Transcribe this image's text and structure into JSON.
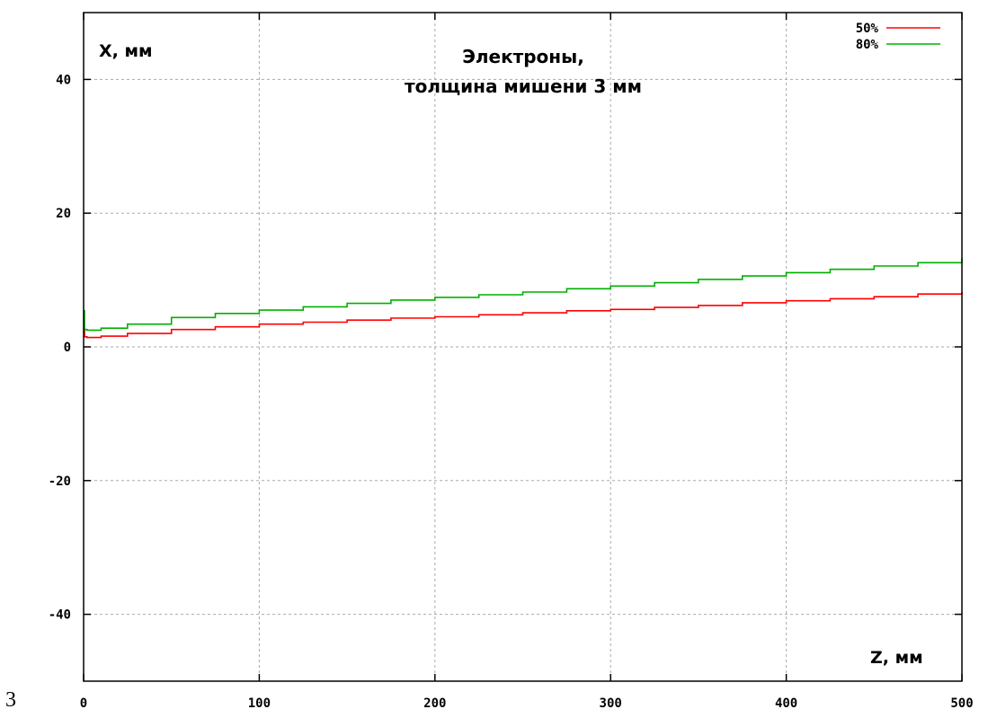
{
  "page_number": "3",
  "chart_data": {
    "type": "line",
    "title_lines": [
      "Электроны,",
      "толщина мишени 3 мм"
    ],
    "xlabel": "Z, мм",
    "ylabel": "X, мм",
    "xlim": [
      0,
      500
    ],
    "ylim": [
      -50,
      50
    ],
    "x_ticks": [
      0,
      100,
      200,
      300,
      400,
      500
    ],
    "y_ticks": [
      -40,
      -20,
      0,
      20,
      40
    ],
    "x_tick_labels": [
      "0",
      "100",
      "200",
      "300",
      "400",
      "500"
    ],
    "y_tick_labels": [
      "-40",
      "-20",
      "0",
      "20",
      "40"
    ],
    "grid": true,
    "legend_position": "top-right",
    "series": [
      {
        "name": "50%",
        "color": "#ff0000",
        "x": [
          0,
          0.5,
          2,
          10,
          25,
          50,
          75,
          100,
          125,
          150,
          175,
          200,
          225,
          250,
          275,
          300,
          325,
          350,
          375,
          400,
          425,
          450,
          475,
          500
        ],
        "y": [
          2.8,
          1.5,
          1.4,
          1.6,
          2.0,
          2.6,
          3.0,
          3.4,
          3.7,
          4.0,
          4.3,
          4.5,
          4.8,
          5.1,
          5.4,
          5.6,
          5.9,
          6.2,
          6.6,
          6.9,
          7.2,
          7.5,
          7.9,
          8.2
        ]
      },
      {
        "name": "80%",
        "color": "#00b000",
        "x": [
          0,
          0.5,
          2,
          10,
          25,
          50,
          75,
          100,
          125,
          150,
          175,
          200,
          225,
          250,
          275,
          300,
          325,
          350,
          375,
          400,
          425,
          450,
          475,
          500
        ],
        "y": [
          5.4,
          2.6,
          2.5,
          2.8,
          3.4,
          4.4,
          5.0,
          5.5,
          6.0,
          6.5,
          7.0,
          7.4,
          7.8,
          8.2,
          8.7,
          9.1,
          9.6,
          10.1,
          10.6,
          11.1,
          11.6,
          12.1,
          12.6,
          13.3
        ]
      }
    ]
  }
}
